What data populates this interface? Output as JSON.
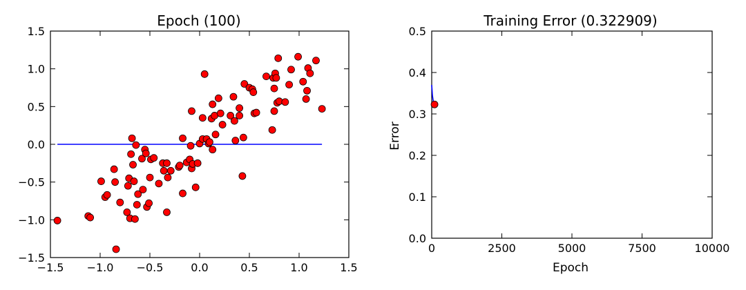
{
  "chart_data": [
    {
      "type": "scatter",
      "title_prefix": "Epoch",
      "epoch": "100",
      "xlabel": "",
      "ylabel": "",
      "xlim": [
        -1.5,
        1.5
      ],
      "ylim": [
        -1.5,
        1.5
      ],
      "xticks": [
        "−1.5",
        "−1.0",
        "−0.5",
        "0.0",
        "0.5",
        "1.0",
        "1.5"
      ],
      "yticks": [
        "−1.5",
        "−1.0",
        "−0.5",
        "0.0",
        "0.5",
        "1.0",
        "1.5"
      ],
      "grid": false,
      "line_color": "#0000ff",
      "marker_color": "#ff0000",
      "fit_line": {
        "x": [
          -1.43,
          1.23
        ],
        "y": [
          0.0,
          0.0
        ]
      },
      "points": [
        [
          -1.43,
          -1.01
        ],
        [
          -1.12,
          -0.95
        ],
        [
          -1.1,
          -0.97
        ],
        [
          -0.99,
          -0.49
        ],
        [
          -0.95,
          -0.7
        ],
        [
          -0.93,
          -0.67
        ],
        [
          -0.86,
          -0.33
        ],
        [
          -0.85,
          -0.5
        ],
        [
          -0.84,
          -1.39
        ],
        [
          -0.8,
          -0.77
        ],
        [
          -0.73,
          -0.9
        ],
        [
          -0.72,
          -0.55
        ],
        [
          -0.71,
          -0.45
        ],
        [
          -0.7,
          -0.98
        ],
        [
          -0.69,
          -0.13
        ],
        [
          -0.68,
          0.08
        ],
        [
          -0.67,
          -0.27
        ],
        [
          -0.66,
          -0.49
        ],
        [
          -0.65,
          -0.99
        ],
        [
          -0.64,
          -0.01
        ],
        [
          -0.63,
          -0.8
        ],
        [
          -0.62,
          -0.66
        ],
        [
          -0.58,
          -0.19
        ],
        [
          -0.57,
          -0.6
        ],
        [
          -0.55,
          -0.07
        ],
        [
          -0.54,
          -0.12
        ],
        [
          -0.53,
          -0.83
        ],
        [
          -0.51,
          -0.78
        ],
        [
          -0.5,
          -0.44
        ],
        [
          -0.49,
          -0.2
        ],
        [
          -0.46,
          -0.18
        ],
        [
          -0.41,
          -0.52
        ],
        [
          -0.37,
          -0.25
        ],
        [
          -0.36,
          -0.35
        ],
        [
          -0.33,
          -0.25
        ],
        [
          -0.33,
          -0.9
        ],
        [
          -0.32,
          -0.44
        ],
        [
          -0.29,
          -0.35
        ],
        [
          -0.21,
          -0.3
        ],
        [
          -0.2,
          -0.28
        ],
        [
          -0.17,
          0.08
        ],
        [
          -0.17,
          -0.65
        ],
        [
          -0.13,
          -0.24
        ],
        [
          -0.1,
          -0.2
        ],
        [
          -0.09,
          -0.02
        ],
        [
          -0.08,
          -0.32
        ],
        [
          -0.07,
          -0.26
        ],
        [
          -0.08,
          0.44
        ],
        [
          -0.04,
          -0.57
        ],
        [
          -0.02,
          -0.25
        ],
        [
          0.0,
          0.01
        ],
        [
          0.03,
          0.35
        ],
        [
          0.03,
          0.07
        ],
        [
          0.05,
          0.93
        ],
        [
          0.07,
          0.07
        ],
        [
          0.09,
          0.01
        ],
        [
          0.1,
          0.03
        ],
        [
          0.12,
          0.34
        ],
        [
          0.13,
          -0.07
        ],
        [
          0.13,
          0.53
        ],
        [
          0.15,
          0.38
        ],
        [
          0.16,
          0.13
        ],
        [
          0.19,
          0.61
        ],
        [
          0.21,
          0.41
        ],
        [
          0.23,
          0.26
        ],
        [
          0.31,
          0.38
        ],
        [
          0.34,
          0.63
        ],
        [
          0.35,
          0.31
        ],
        [
          0.36,
          0.05
        ],
        [
          0.4,
          0.48
        ],
        [
          0.4,
          0.38
        ],
        [
          0.43,
          -0.42
        ],
        [
          0.44,
          0.09
        ],
        [
          0.45,
          0.8
        ],
        [
          0.5,
          0.75
        ],
        [
          0.53,
          0.73
        ],
        [
          0.54,
          0.69
        ],
        [
          0.55,
          0.41
        ],
        [
          0.57,
          0.42
        ],
        [
          0.67,
          0.9
        ],
        [
          0.73,
          0.19
        ],
        [
          0.74,
          0.88
        ],
        [
          0.75,
          0.44
        ],
        [
          0.75,
          0.74
        ],
        [
          0.76,
          0.94
        ],
        [
          0.77,
          0.88
        ],
        [
          0.78,
          0.55
        ],
        [
          0.79,
          1.14
        ],
        [
          0.8,
          0.57
        ],
        [
          0.86,
          0.56
        ],
        [
          0.9,
          0.79
        ],
        [
          0.92,
          0.99
        ],
        [
          0.99,
          1.16
        ],
        [
          1.04,
          0.83
        ],
        [
          1.07,
          0.6
        ],
        [
          1.08,
          0.71
        ],
        [
          1.09,
          1.01
        ],
        [
          1.11,
          0.94
        ],
        [
          1.17,
          1.11
        ],
        [
          1.23,
          0.47
        ]
      ]
    },
    {
      "type": "line",
      "title_prefix": "Training Error",
      "error_value": "0.322909",
      "xlabel": "Epoch",
      "ylabel": "Error",
      "xlim": [
        0,
        10000
      ],
      "ylim": [
        0.0,
        0.5
      ],
      "xticks": [
        "0",
        "2500",
        "5000",
        "7500",
        "10000"
      ],
      "yticks": [
        "0.0",
        "0.1",
        "0.2",
        "0.3",
        "0.4",
        "0.5"
      ],
      "grid": false,
      "line_color": "#0000ff",
      "marker_color": "#ff0000",
      "series": {
        "x": [
          0,
          25,
          50,
          75,
          100
        ],
        "y": [
          0.37,
          0.345,
          0.333,
          0.327,
          0.323
        ]
      },
      "current_point": [
        100,
        0.322909
      ]
    }
  ]
}
